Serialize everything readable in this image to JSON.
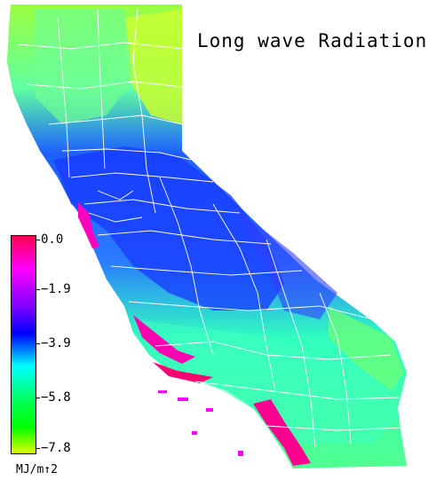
{
  "title": "Long wave Radiation",
  "legend": {
    "ticks": [
      "0.0",
      "−1.9",
      "−3.9",
      "−5.8",
      "−7.8"
    ],
    "units": "MJ/m↑2",
    "colors": [
      "#ff0050",
      "#ff00ff",
      "#7a00ff",
      "#0000ff",
      "#00ffff",
      "#00ff44",
      "#00ff00",
      "#ccff00"
    ]
  },
  "map_colors": {
    "north": "#80ff40",
    "northeast": "#c8ff20",
    "coast": "#40ffc0",
    "central_valley": "#1840ff",
    "sierra": "#2060ff",
    "south": "#30ffb0",
    "desert": "#60ff90",
    "hotspot": "#ff00a0",
    "county_lines": "#ffffff"
  }
}
